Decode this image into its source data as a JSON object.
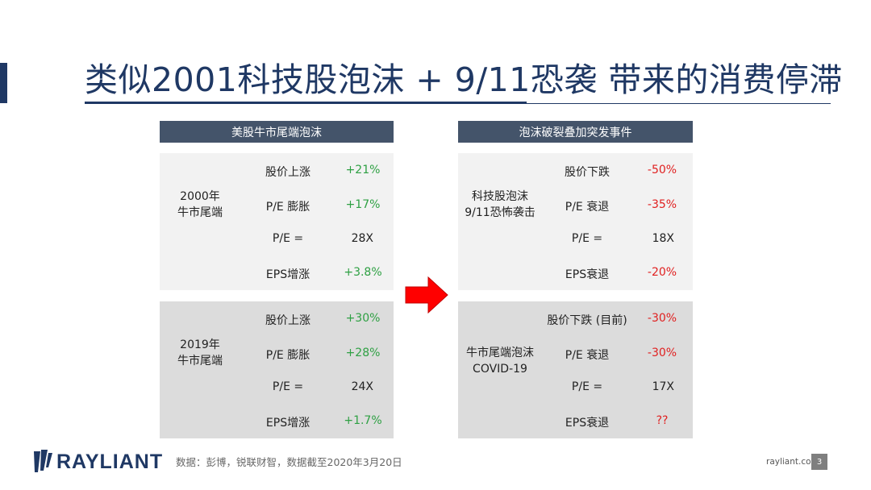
{
  "title": "类似2001科技股泡沫 + 9/11恐袭 带来的消费停滞",
  "left_header": "美股牛市尾端泡沫",
  "right_header": "泡沫破裂叠加突发事件",
  "left_top": {
    "group": [
      "2000年",
      "牛市尾端"
    ],
    "rows": [
      {
        "label": "股价上涨",
        "value": "+21%"
      },
      {
        "label": "P/E 膨胀",
        "value": "+17%"
      },
      {
        "label": "P/E =",
        "value": "28X"
      },
      {
        "label": "EPS增涨",
        "value": "+3.8%"
      }
    ]
  },
  "left_bottom": {
    "group": [
      "2019年",
      "牛市尾端"
    ],
    "rows": [
      {
        "label": "股价上涨",
        "value": "+30%"
      },
      {
        "label": "P/E 膨胀",
        "value": "+28%"
      },
      {
        "label": "P/E =",
        "value": "24X"
      },
      {
        "label": "EPS增涨",
        "value": "+1.7%"
      }
    ]
  },
  "right_top": {
    "group": [
      "科技股泡沫",
      "9/11恐怖袭击"
    ],
    "rows": [
      {
        "label": "股价下跌",
        "value": "-50%"
      },
      {
        "label": "P/E 衰退",
        "value": "-35%"
      },
      {
        "label": "P/E =",
        "value": "18X"
      },
      {
        "label": "EPS衰退",
        "value": "-20%"
      }
    ]
  },
  "right_bottom": {
    "group": [
      "牛市尾端泡沫",
      "COVID-19"
    ],
    "rows": [
      {
        "label": "股价下跌 (目前)",
        "value": "-30%"
      },
      {
        "label": "P/E 衰退",
        "value": "-30%"
      },
      {
        "label": "P/E =",
        "value": "17X"
      },
      {
        "label": "EPS衰退",
        "value": "??"
      }
    ]
  },
  "colors": {
    "title": "#1f3864",
    "header_bg": "#44546a",
    "positive": "#2ea043",
    "negative": "#e02020",
    "arrow": "#ff0000",
    "panel_light": "#f2f2f2",
    "panel_gray": "#dcdcdc"
  },
  "logo_icon": "rayliant-wing-icon",
  "logo": "RAYLIANT",
  "source": "数据：彭博，锐联财智，数据截至2020年3月20日",
  "site": "rayliant.com",
  "page_number": "3"
}
